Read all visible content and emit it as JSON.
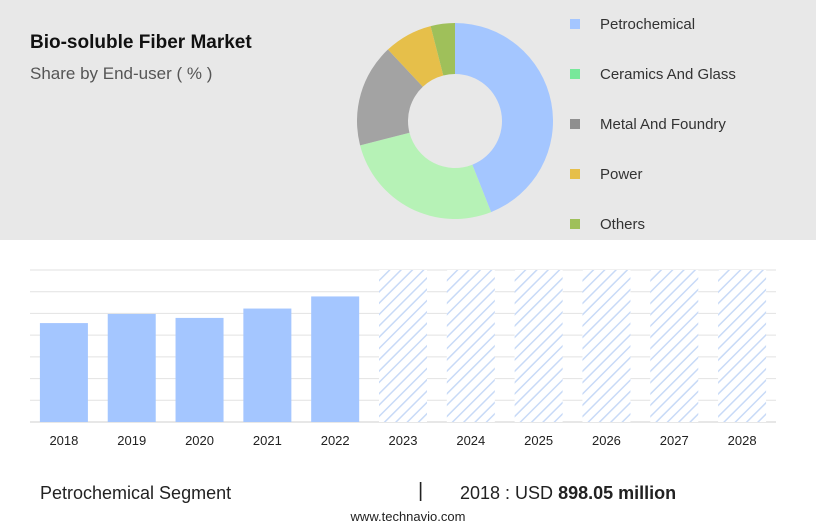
{
  "header": {
    "title": "Bio-soluble Fiber Market",
    "subtitle": "Share by End-user ( % )"
  },
  "footer": {
    "segment": "Petrochemical Segment",
    "divider": "|",
    "value_prefix": "2018 : USD",
    "value_amount": "898.05 million",
    "source": "www.technavio.com"
  },
  "chart_data": [
    {
      "type": "pie",
      "donut": true,
      "labels": [
        "Petrochemical",
        "Ceramics And Glass",
        "Metal And Foundry",
        "Power",
        "Others"
      ],
      "values": [
        44,
        27,
        17,
        8,
        4
      ],
      "colors": [
        "#a4c6ff",
        "#b6f2b6",
        "#a3a3a3",
        "#e6bf4a",
        "#9fc05a"
      ],
      "legend_colors": [
        "#a4c6ff",
        "#77e89a",
        "#8f8f8f",
        "#e6bf4a",
        "#9fc05a"
      ],
      "legend_position": "right"
    },
    {
      "type": "bar",
      "categories": [
        "2018",
        "2019",
        "2020",
        "2021",
        "2022",
        "2023",
        "2024",
        "2025",
        "2026",
        "2027",
        "2028"
      ],
      "values": [
        898.05,
        981,
        945,
        1030,
        1140,
        null,
        null,
        null,
        null,
        null,
        null
      ],
      "forecast_categories": [
        "2023",
        "2024",
        "2025",
        "2026",
        "2027",
        "2028"
      ],
      "ylim": [
        0,
        1380
      ],
      "grid": true,
      "bar_color": "#a4c6ff",
      "forecast_color": "#c8daf7"
    }
  ]
}
